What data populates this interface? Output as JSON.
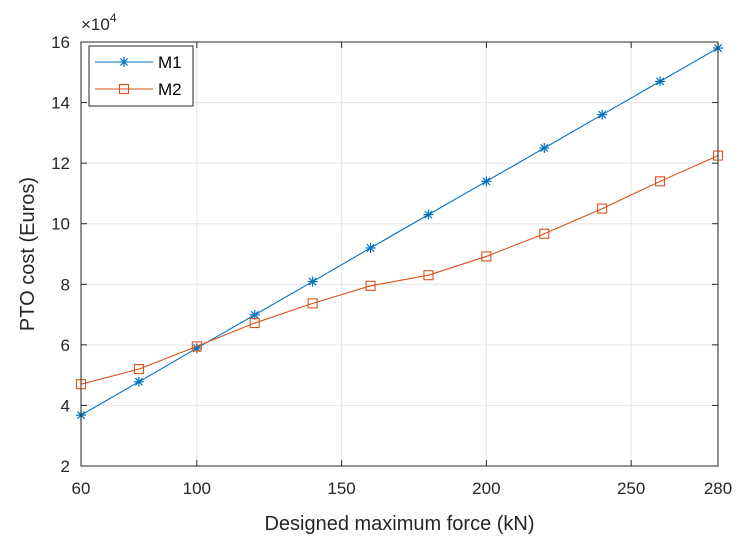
{
  "chart_data": {
    "type": "line",
    "xlabel": "Designed maximum force (kN)",
    "ylabel": "PTO cost (Euros)",
    "exponent_base": "×10",
    "exponent_power": "4",
    "x_ticks": [
      "60",
      "100",
      "150",
      "200",
      "250",
      "280"
    ],
    "y_ticks": [
      "2",
      "4",
      "6",
      "8",
      "10",
      "12",
      "14",
      "16"
    ],
    "xlim": [
      60,
      280
    ],
    "ylim": [
      2,
      16
    ],
    "grid": true,
    "legend_position": "top-left",
    "series": [
      {
        "name": "M1",
        "color": "#0072BD",
        "marker": "asterisk",
        "x": [
          60,
          80,
          100,
          120,
          140,
          160,
          180,
          200,
          220,
          240,
          260,
          280
        ],
        "y": [
          3.68,
          4.78,
          5.89,
          6.99,
          8.09,
          9.2,
          10.3,
          11.4,
          12.5,
          13.6,
          14.7,
          15.8
        ]
      },
      {
        "name": "M2",
        "color": "#D95319",
        "marker": "square",
        "x": [
          60,
          80,
          100,
          120,
          140,
          160,
          180,
          200,
          220,
          240,
          260,
          280
        ],
        "y": [
          4.7,
          5.2,
          5.95,
          6.72,
          7.37,
          7.95,
          8.3,
          8.92,
          9.67,
          10.5,
          11.4,
          12.25
        ]
      }
    ]
  }
}
